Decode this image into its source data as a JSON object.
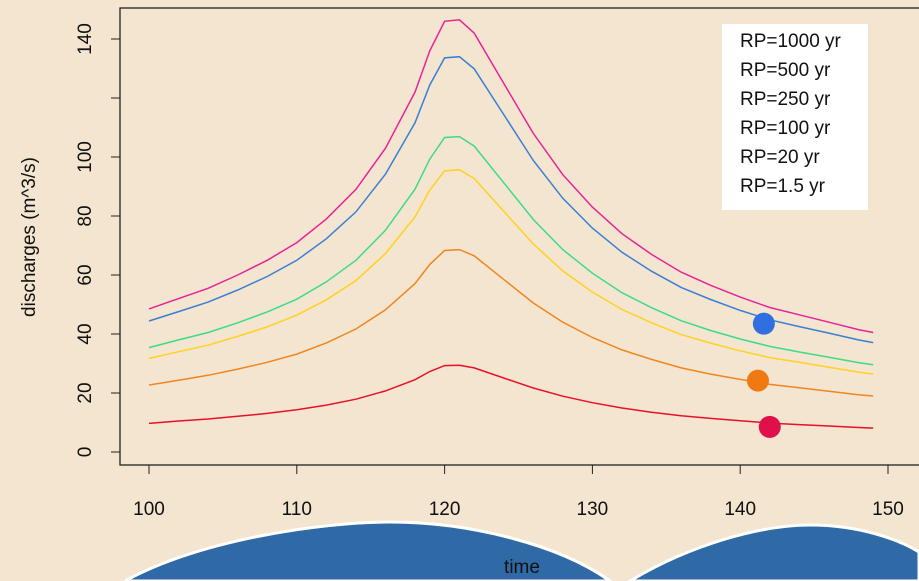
{
  "chart_data": {
    "type": "line",
    "x_label": "time",
    "y_label": "discharges (m^3/s)",
    "x": [
      100,
      102,
      104,
      106,
      108,
      110,
      112,
      114,
      116,
      118,
      119,
      120,
      121,
      122,
      124,
      126,
      128,
      130,
      132,
      134,
      136,
      138,
      140,
      142,
      144,
      146,
      148,
      149
    ],
    "series": [
      {
        "name": "RP=1000 yr",
        "color": "#e8239a",
        "values": [
          48.5,
          52,
          55.5,
          60,
          65,
          71,
          79,
          89,
          103,
          122,
          136,
          146,
          146.5,
          142,
          125,
          108,
          94,
          83,
          74,
          67,
          61,
          56.5,
          52.5,
          49,
          46.5,
          44,
          41.5,
          40.5
        ]
      },
      {
        "name": "RP=500 yr",
        "color": "#3a7fd5",
        "values": [
          44.4,
          47.6,
          50.8,
          54.9,
          59.5,
          65,
          72.3,
          81.4,
          94.2,
          111.6,
          124.4,
          133.6,
          134,
          129.9,
          114.4,
          98.8,
          86,
          75.9,
          67.7,
          61.3,
          55.8,
          51.7,
          48,
          44.8,
          42.5,
          40.3,
          38,
          37.1
        ]
      },
      {
        "name": "RP=250 yr",
        "color": "#3ddc84",
        "values": [
          35.4,
          38,
          40.5,
          43.8,
          47.5,
          51.8,
          57.7,
          65,
          75.2,
          89.1,
          99.3,
          106.6,
          106.9,
          103.7,
          91.3,
          78.8,
          68.6,
          60.6,
          54,
          48.9,
          44.5,
          41.2,
          38.3,
          35.8,
          33.9,
          32.1,
          30.3,
          29.6
        ]
      },
      {
        "name": "RP=100 yr",
        "color": "#ffd21f",
        "values": [
          31.7,
          34,
          36.2,
          39.2,
          42.4,
          46.4,
          51.6,
          58.1,
          67.3,
          79.7,
          88.8,
          95.3,
          95.7,
          92.7,
          81.6,
          70.5,
          61.4,
          54.2,
          48.3,
          43.8,
          39.8,
          36.9,
          34.3,
          32,
          30.4,
          28.7,
          27.1,
          26.4
        ]
      },
      {
        "name": "RP=20 yr",
        "color": "#f0861e",
        "values": [
          22.7,
          24.3,
          26,
          28.1,
          30.4,
          33.2,
          37,
          41.7,
          48.2,
          57.1,
          63.6,
          68.3,
          68.6,
          66.5,
          58.5,
          50.5,
          44,
          38.8,
          34.6,
          31.4,
          28.5,
          26.4,
          24.6,
          22.9,
          21.8,
          20.6,
          19.4,
          19
        ]
      },
      {
        "name": "RP=1.5 yr",
        "color": "#e8102a",
        "values": [
          9.7,
          10.5,
          11.2,
          12.1,
          13.1,
          14.3,
          15.9,
          17.9,
          20.7,
          24.5,
          27.3,
          29.3,
          29.4,
          28.5,
          25.1,
          21.7,
          18.9,
          16.7,
          14.9,
          13.5,
          12.3,
          11.4,
          10.6,
          9.8,
          9.3,
          8.8,
          8.3,
          8.1
        ]
      }
    ],
    "markers": [
      {
        "x": 141.6,
        "y": 43.5,
        "color": "#2f6fe0"
      },
      {
        "x": 141.2,
        "y": 24.2,
        "color": "#f07a12"
      },
      {
        "x": 142,
        "y": 8.5,
        "color": "#e0104a"
      }
    ],
    "xlim": [
      98,
      152
    ],
    "ylim": [
      -4,
      150
    ],
    "xticks": [
      100,
      110,
      120,
      130,
      140,
      150
    ],
    "yticks": [
      0,
      20,
      40,
      60,
      80,
      100,
      {
        "value": 120,
        "label": null
      },
      140
    ],
    "legend": "top-right"
  }
}
